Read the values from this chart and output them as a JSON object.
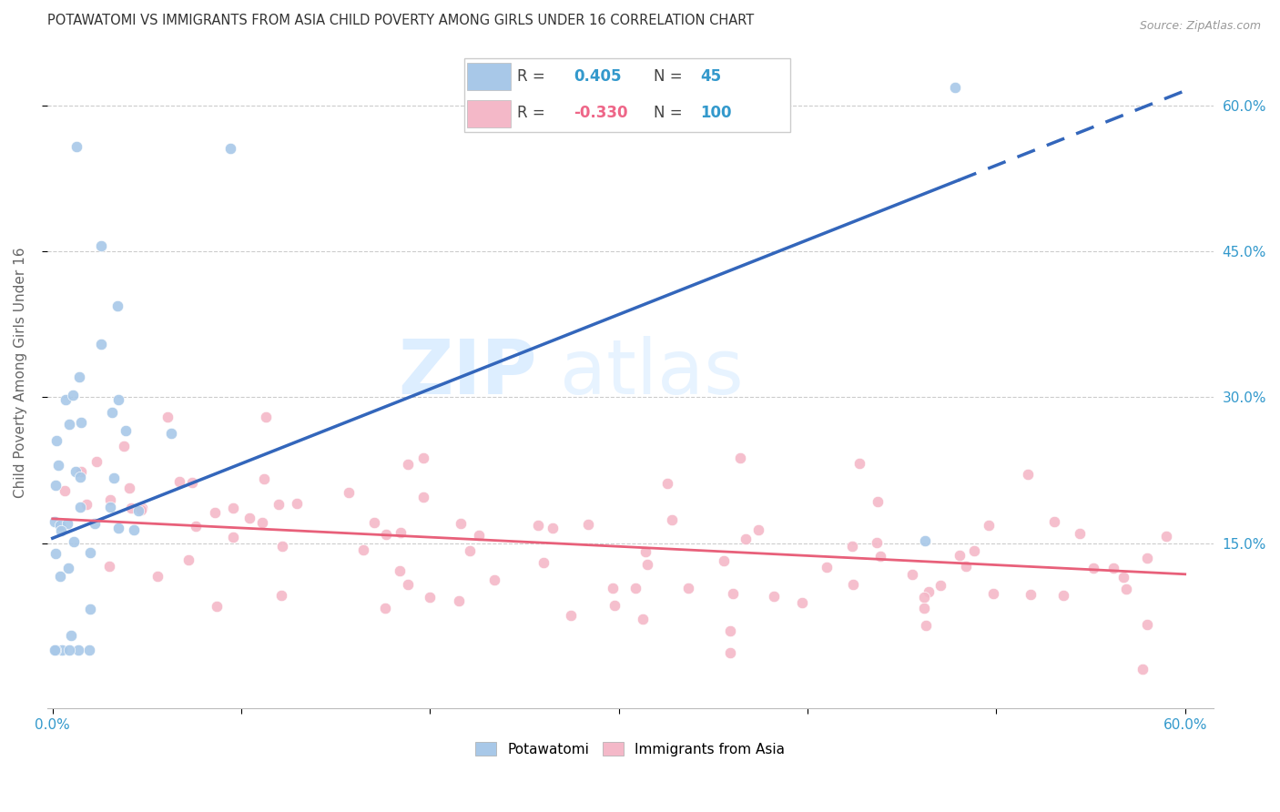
{
  "title": "POTAWATOMI VS IMMIGRANTS FROM ASIA CHILD POVERTY AMONG GIRLS UNDER 16 CORRELATION CHART",
  "source": "Source: ZipAtlas.com",
  "ylabel": "Child Poverty Among Girls Under 16",
  "xlim": [
    -0.003,
    0.615
  ],
  "ylim": [
    -0.02,
    0.67
  ],
  "xticks": [
    0.0,
    0.1,
    0.2,
    0.3,
    0.4,
    0.5,
    0.6
  ],
  "xtick_labels": [
    "0.0%",
    "",
    "",
    "",
    "",
    "",
    "60.0%"
  ],
  "yticks": [
    0.15,
    0.3,
    0.45,
    0.6
  ],
  "ytick_labels": [
    "15.0%",
    "30.0%",
    "45.0%",
    "60.0%"
  ],
  "r_potawatomi": 0.405,
  "n_potawatomi": 45,
  "r_immigrants": -0.33,
  "n_immigrants": 100,
  "blue_scatter_color": "#a8c8e8",
  "pink_scatter_color": "#f4b8c8",
  "blue_line_color": "#3366bb",
  "pink_line_color": "#e8607a",
  "blue_legend_color": "#a8c8e8",
  "pink_legend_color": "#f4b8c8",
  "blue_text_color": "#3399cc",
  "pink_text_color": "#ee6688",
  "watermark_color": "#ddeeff",
  "grid_color": "#cccccc",
  "title_color": "#333333",
  "source_color": "#999999",
  "ylabel_color": "#666666",
  "tick_label_color": "#3399cc",
  "blue_line_solid_end": 0.48,
  "blue_line_start_y": 0.155,
  "blue_line_end_y": 0.615,
  "pink_line_start_y": 0.175,
  "pink_line_end_y": 0.118,
  "pot_seed": 77,
  "imm_seed": 42
}
